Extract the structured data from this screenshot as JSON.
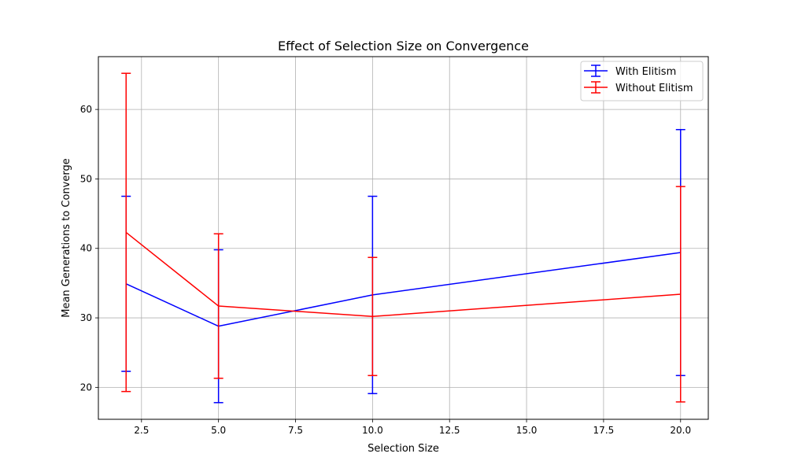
{
  "chart_data": {
    "type": "line",
    "title": "Effect of Selection Size on Convergence",
    "xlabel": "Selection Size",
    "ylabel": "Mean Generations to Converge",
    "xlim": [
      1.1,
      20.9
    ],
    "ylim": [
      15.4,
      67.6
    ],
    "xticks": [
      2.5,
      5.0,
      7.5,
      10.0,
      12.5,
      15.0,
      17.5,
      20.0
    ],
    "xtick_labels": [
      "2.5",
      "5.0",
      "7.5",
      "10.0",
      "12.5",
      "15.0",
      "17.5",
      "20.0"
    ],
    "yticks": [
      20,
      30,
      40,
      50,
      60
    ],
    "ytick_labels": [
      "20",
      "30",
      "40",
      "50",
      "60"
    ],
    "grid": true,
    "legend_position": "top-right",
    "x": [
      2,
      5,
      10,
      20
    ],
    "series": [
      {
        "name": "With Elitism",
        "color": "#0000ff",
        "values": [
          34.9,
          28.8,
          33.3,
          39.4
        ],
        "error": [
          12.6,
          11.0,
          14.2,
          17.7
        ]
      },
      {
        "name": "Without Elitism",
        "color": "#ff0000",
        "values": [
          42.3,
          31.7,
          30.2,
          33.4
        ],
        "error": [
          22.9,
          10.4,
          8.5,
          15.5
        ]
      }
    ]
  }
}
